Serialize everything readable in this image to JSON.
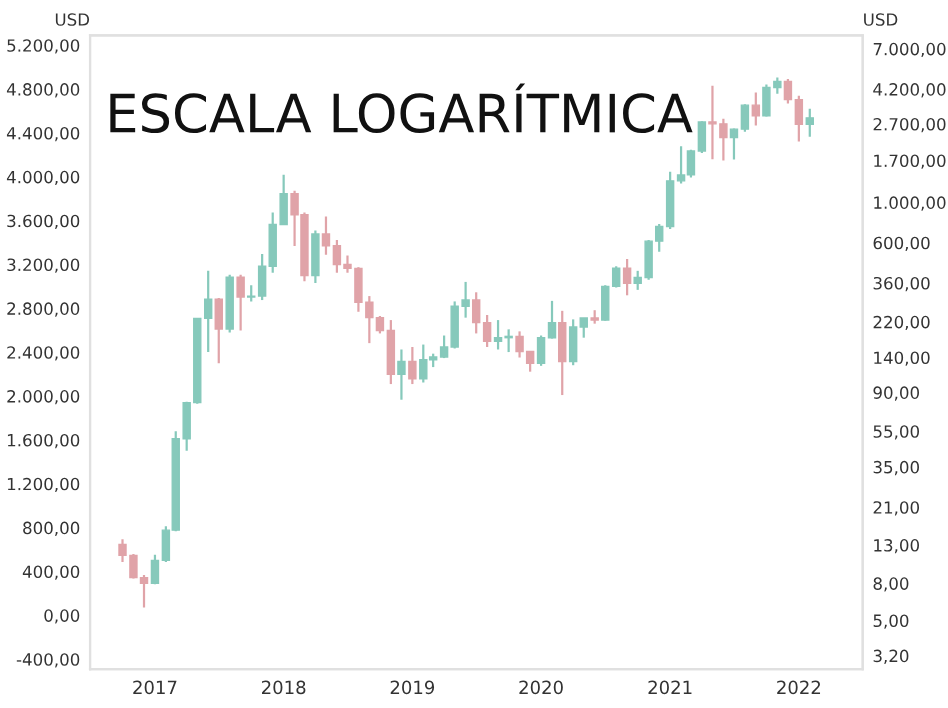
{
  "chart_data": {
    "type": "candlestick",
    "title": "ESCALA LOGARÍTMICA",
    "ylabel": "USD",
    "y2label": "USD",
    "x": [
      "2016-10",
      "2016-11",
      "2016-12",
      "2017-01",
      "2017-02",
      "2017-03",
      "2017-04",
      "2017-05",
      "2017-06",
      "2017-07",
      "2017-08",
      "2017-09",
      "2017-10",
      "2017-11",
      "2017-12",
      "2018-01",
      "2018-02",
      "2018-03",
      "2018-04",
      "2018-05",
      "2018-06",
      "2018-07",
      "2018-08",
      "2018-09",
      "2018-10",
      "2018-11",
      "2018-12",
      "2019-01",
      "2019-02",
      "2019-03",
      "2019-04",
      "2019-05",
      "2019-06",
      "2019-07",
      "2019-08",
      "2019-09",
      "2019-10",
      "2019-11",
      "2019-12",
      "2020-01",
      "2020-02",
      "2020-03",
      "2020-04",
      "2020-05",
      "2020-06",
      "2020-07",
      "2020-08",
      "2020-09",
      "2020-10",
      "2020-11",
      "2020-12",
      "2021-01",
      "2021-02",
      "2021-03",
      "2021-04",
      "2021-05",
      "2021-06",
      "2021-07",
      "2021-08",
      "2021-09",
      "2021-10",
      "2021-11",
      "2021-12",
      "2022-01",
      "2022-02"
    ],
    "ohlc": [
      [
        13.1,
        14,
        10.5,
        11.4
      ],
      [
        11.4,
        11.6,
        8.5,
        8.6
      ],
      [
        8.6,
        8.9,
        5.9,
        8
      ],
      [
        8,
        11.5,
        7.9,
        10.7
      ],
      [
        10.7,
        16.5,
        10.5,
        15.7
      ],
      [
        15.7,
        55,
        15.5,
        50
      ],
      [
        50,
        80,
        43,
        79
      ],
      [
        79,
        230,
        78,
        230
      ],
      [
        230,
        420,
        150,
        293
      ],
      [
        293,
        298,
        130,
        201
      ],
      [
        201,
        400,
        192,
        388
      ],
      [
        388,
        400,
        197,
        301
      ],
      [
        301,
        350,
        285,
        305
      ],
      [
        305,
        520,
        290,
        445
      ],
      [
        445,
        880,
        410,
        755
      ],
      [
        755,
        1420,
        750,
        1118
      ],
      [
        1118,
        1160,
        575,
        855
      ],
      [
        855,
        880,
        368,
        395
      ],
      [
        395,
        700,
        360,
        670
      ],
      [
        670,
        835,
        515,
        577
      ],
      [
        577,
        620,
        410,
        455
      ],
      [
        455,
        510,
        410,
        433
      ],
      [
        433,
        440,
        250,
        282
      ],
      [
        282,
        305,
        168,
        232
      ],
      [
        232,
        237,
        190,
        197
      ],
      [
        197,
        225,
        100,
        113
      ],
      [
        113,
        155,
        82,
        133
      ],
      [
        133,
        160,
        100,
        107
      ],
      [
        107,
        165,
        102,
        136
      ],
      [
        136,
        147,
        124,
        141
      ],
      [
        141,
        185,
        139,
        160
      ],
      [
        160,
        285,
        157,
        268
      ],
      [
        268,
        365,
        232,
        290
      ],
      [
        290,
        320,
        190,
        218
      ],
      [
        218,
        240,
        160,
        172
      ],
      [
        172,
        225,
        155,
        180
      ],
      [
        180,
        200,
        150,
        183
      ],
      [
        183,
        195,
        140,
        151
      ],
      [
        151,
        152,
        117,
        130
      ],
      [
        130,
        185,
        126,
        180
      ],
      [
        180,
        287,
        178,
        218
      ],
      [
        218,
        253,
        87,
        133
      ],
      [
        133,
        227,
        127,
        206
      ],
      [
        206,
        231,
        180,
        231
      ],
      [
        231,
        255,
        215,
        225
      ],
      [
        225,
        350,
        223,
        345
      ],
      [
        345,
        445,
        340,
        434
      ],
      [
        434,
        488,
        308,
        359
      ],
      [
        359,
        420,
        330,
        386
      ],
      [
        386,
        620,
        375,
        612
      ],
      [
        612,
        760,
        535,
        737
      ],
      [
        737,
        1475,
        714,
        1314
      ],
      [
        1314,
        2040,
        1270,
        1417
      ],
      [
        1417,
        1950,
        1370,
        1919
      ],
      [
        1919,
        2795,
        1870,
        2773
      ],
      [
        2773,
        4380,
        1730,
        2706
      ],
      [
        2706,
        2890,
        1700,
        2275
      ],
      [
        2275,
        2550,
        1720,
        2530
      ],
      [
        2530,
        3470,
        2450,
        3430
      ],
      [
        3430,
        4030,
        2650,
        3000
      ],
      [
        3000,
        4460,
        2970,
        4290
      ],
      [
        4290,
        4870,
        3960,
        4630
      ],
      [
        4630,
        4780,
        3500,
        3680
      ],
      [
        3680,
        3860,
        2160,
        2690
      ],
      [
        2690,
        3280,
        2300,
        2920
      ]
    ],
    "colors": [
      "#e0a3a8",
      "#e0a3a8",
      "#e0a3a8",
      "#86c9bb",
      "#86c9bb",
      "#86c9bb",
      "#86c9bb",
      "#86c9bb",
      "#86c9bb",
      "#e0a3a8",
      "#86c9bb",
      "#e0a3a8",
      "#86c9bb",
      "#86c9bb",
      "#86c9bb",
      "#86c9bb",
      "#e0a3a8",
      "#e0a3a8",
      "#86c9bb",
      "#e0a3a8",
      "#e0a3a8",
      "#e0a3a8",
      "#e0a3a8",
      "#e0a3a8",
      "#e0a3a8",
      "#e0a3a8",
      "#86c9bb",
      "#e0a3a8",
      "#86c9bb",
      "#86c9bb",
      "#86c9bb",
      "#86c9bb",
      "#86c9bb",
      "#e0a3a8",
      "#e0a3a8",
      "#86c9bb",
      "#86c9bb",
      "#e0a3a8",
      "#e0a3a8",
      "#86c9bb",
      "#86c9bb",
      "#e0a3a8",
      "#86c9bb",
      "#86c9bb",
      "#e0a3a8",
      "#86c9bb",
      "#86c9bb",
      "#e0a3a8",
      "#86c9bb",
      "#86c9bb",
      "#86c9bb",
      "#86c9bb",
      "#86c9bb",
      "#86c9bb",
      "#86c9bb",
      "#e0a3a8",
      "#e0a3a8",
      "#86c9bb",
      "#86c9bb",
      "#e0a3a8",
      "#86c9bb",
      "#86c9bb",
      "#e0a3a8",
      "#e0a3a8",
      "#86c9bb"
    ],
    "log": "y",
    "xlim": [
      "2016-07",
      "2022-07"
    ],
    "xticks": [
      {
        "value": "2017-01",
        "label": "2017"
      },
      {
        "value": "2018-01",
        "label": "2018"
      },
      {
        "value": "2019-01",
        "label": "2019"
      },
      {
        "value": "2020-01",
        "label": "2020"
      },
      {
        "value": "2021-01",
        "label": "2021"
      },
      {
        "value": "2022-01",
        "label": "2022"
      }
    ],
    "ylim": [
      2.7,
      8300
    ],
    "yticks": [
      {
        "value": 3.2,
        "label": "3,20"
      },
      {
        "value": 5,
        "label": "5,00"
      },
      {
        "value": 8,
        "label": "8,00"
      },
      {
        "value": 13,
        "label": "13,00"
      },
      {
        "value": 21,
        "label": "21,00"
      },
      {
        "value": 35,
        "label": "35,00"
      },
      {
        "value": 55,
        "label": "55,00"
      },
      {
        "value": 90,
        "label": "90,00"
      },
      {
        "value": 140,
        "label": "140,00"
      },
      {
        "value": 220,
        "label": "220,00"
      },
      {
        "value": 360,
        "label": "360,00"
      },
      {
        "value": 600,
        "label": "600,00"
      },
      {
        "value": 1000,
        "label": "1.000,00"
      },
      {
        "value": 1700,
        "label": "1.700,00"
      },
      {
        "value": 2700,
        "label": "2.700,00"
      },
      {
        "value": 4200,
        "label": "4.200,00"
      },
      {
        "value": 7000,
        "label": "7.000,00"
      }
    ],
    "y2lim": [
      -490,
      5290
    ],
    "y2ticks": [
      {
        "value": -400,
        "label": "-400,00"
      },
      {
        "value": 0,
        "label": "0,00"
      },
      {
        "value": 400,
        "label": "400,00"
      },
      {
        "value": 800,
        "label": "800,00"
      },
      {
        "value": 1200,
        "label": "1.200,00"
      },
      {
        "value": 1600,
        "label": "1.600,00"
      },
      {
        "value": 2000,
        "label": "2.000,00"
      },
      {
        "value": 2400,
        "label": "2.400,00"
      },
      {
        "value": 2800,
        "label": "2.800,00"
      },
      {
        "value": 3200,
        "label": "3.200,00"
      },
      {
        "value": 3600,
        "label": "3.600,00"
      },
      {
        "value": 4000,
        "label": "4.000,00"
      },
      {
        "value": 4400,
        "label": "4.400,00"
      },
      {
        "value": 4800,
        "label": "4.800,00"
      },
      {
        "value": 5200,
        "label": "5.200,00"
      }
    ]
  }
}
